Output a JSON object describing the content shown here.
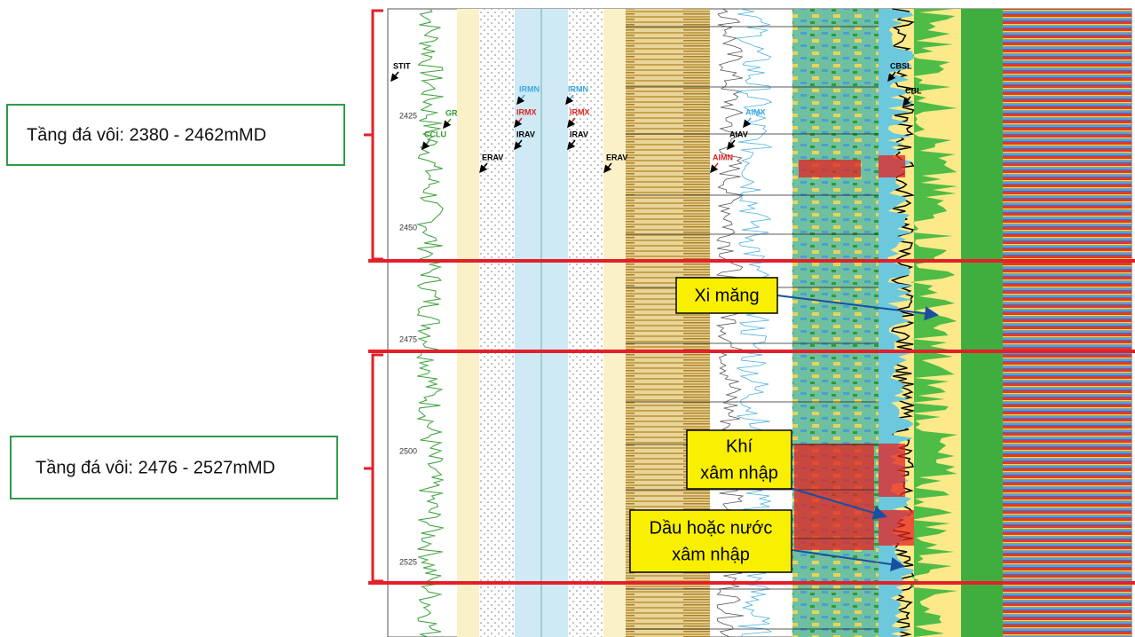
{
  "left_labels": [
    "Tầng đá vôi: 2380 - 2462mMD",
    "Tầng đá vôi: 2476 - 2527mMD"
  ],
  "callouts": [
    {
      "lines": [
        "Xi măng"
      ]
    },
    {
      "lines": [
        "Khí",
        "xâm nhập"
      ]
    },
    {
      "lines": [
        "Dầu hoặc nước",
        "xâm nhập"
      ]
    }
  ],
  "depths": [
    "2425",
    "2450",
    "2475",
    "2500",
    "2525"
  ],
  "track_labels": [
    "STIT",
    "GR",
    "CCLU",
    "IRMN",
    "IRMX",
    "IRAV",
    "ERAV",
    "IRMN",
    "IRMX",
    "IRAV",
    "ERAV",
    "AIMX",
    "AIAV",
    "AIMN",
    "CBSL",
    "CBL"
  ]
}
